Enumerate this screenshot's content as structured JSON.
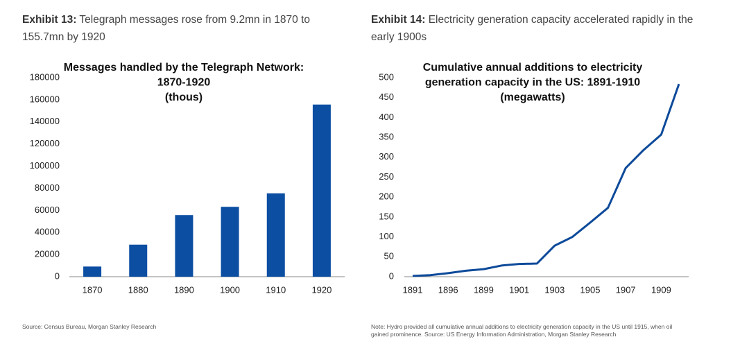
{
  "exhibits": [
    {
      "label": "Exhibit 13:",
      "caption": "Telegraph messages rose from 9.2mn in 1870 to 155.7mn by 1920",
      "source": "Source: Census Bureau, Morgan Stanley Research"
    },
    {
      "label": "Exhibit 14:",
      "caption": "Electricity generation capacity accelerated rapidly in the early 1900s",
      "source": "Note: Hydro provided all cumulative annual additions to electricity generation capacity in the US until 1915, when oil gained prominence. Source: US Energy Information Administration, Morgan Stanley Research"
    }
  ],
  "chart_data": [
    {
      "type": "bar",
      "title": [
        "Messages handled by the Telegraph Network:",
        "1870-1920",
        "(thous)"
      ],
      "categories": [
        "1870",
        "1880",
        "1890",
        "1900",
        "1910",
        "1920"
      ],
      "values": [
        9200,
        29000,
        55700,
        63200,
        75400,
        155700
      ],
      "color": "#0b4ea2",
      "ylim": [
        0,
        180000
      ],
      "yticks": [
        0,
        20000,
        40000,
        60000,
        80000,
        100000,
        120000,
        140000,
        160000,
        180000
      ]
    },
    {
      "type": "line",
      "title": [
        "Cumulative annual additions to electricity",
        "generation capacity in the US: 1891-1910",
        "(megawatts)"
      ],
      "categories": [
        "1891",
        null,
        "1896",
        null,
        "1899",
        null,
        "1901",
        null,
        "1903",
        null,
        "1905",
        null,
        "1907",
        null,
        "1909",
        null
      ],
      "values": [
        2,
        4,
        9,
        15,
        19,
        28,
        32,
        33,
        78,
        100,
        136,
        173,
        273,
        318,
        357,
        484
      ],
      "color": "#0d4a9a",
      "ylim": [
        0,
        500
      ],
      "yticks": [
        0,
        50,
        100,
        150,
        200,
        250,
        300,
        350,
        400,
        450,
        500
      ]
    }
  ]
}
